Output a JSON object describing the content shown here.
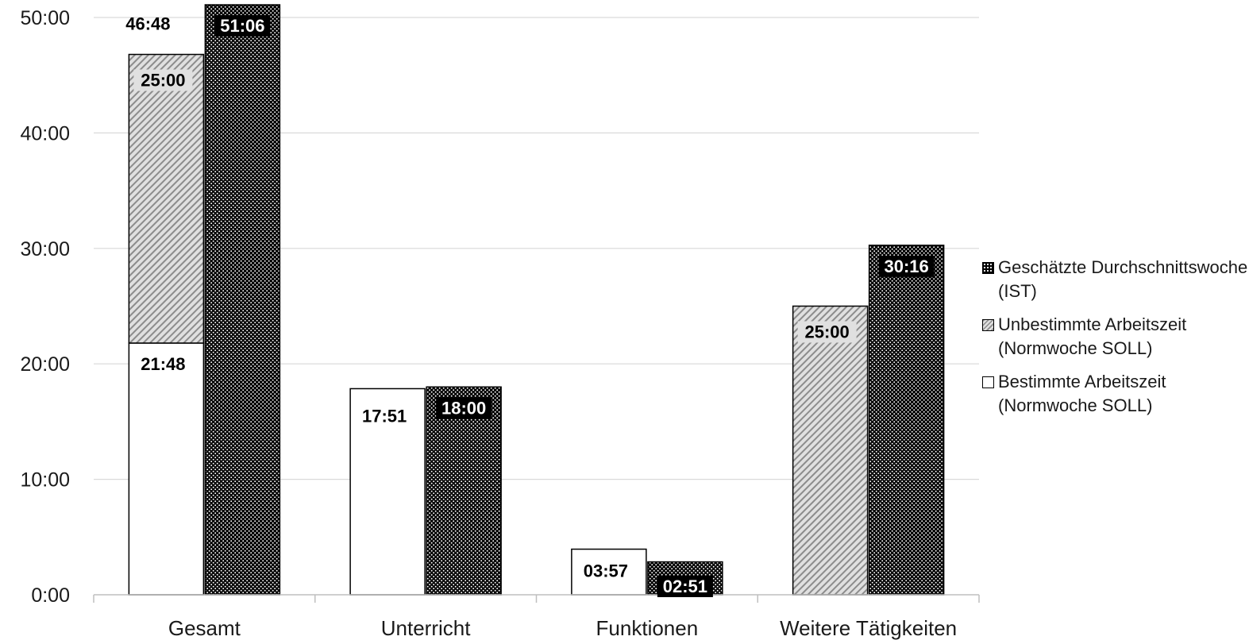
{
  "chart_data": {
    "type": "bar",
    "title": "",
    "xlabel": "",
    "ylabel": "",
    "categories": [
      "Gesamt",
      "Unterricht",
      "Funktionen",
      "Weitere Tätigkeiten"
    ],
    "yticks": [
      "0:00",
      "10:00",
      "20:00",
      "30:00",
      "40:00",
      "50:00"
    ],
    "ylim_hours": [
      0,
      50
    ],
    "grid": "horizontal",
    "legend_position": "right",
    "series": [
      {
        "name": "Bestimmte Arbeitszeit (Normwoche SOLL)",
        "group": "SOLL",
        "pattern": "white",
        "values_hours": [
          21.8,
          17.85,
          3.95,
          0
        ],
        "labels": [
          "21:48",
          "17:51",
          "03:57",
          ""
        ]
      },
      {
        "name": "Unbestimmte Arbeitszeit (Normwoche SOLL)",
        "group": "SOLL",
        "pattern": "diagonal-hatch",
        "values_hours": [
          25.0,
          0,
          0,
          25.0
        ],
        "labels": [
          "25:00",
          "",
          "",
          "25:00"
        ]
      },
      {
        "name": "Geschätzte Durchschnittswoche (IST)",
        "group": "IST",
        "pattern": "black-dots",
        "values_hours": [
          51.1,
          18.0,
          2.85,
          30.27
        ],
        "labels": [
          "51:06",
          "18:00",
          "02:51",
          "30:16"
        ]
      }
    ],
    "stack_totals": [
      {
        "category": "Gesamt",
        "group": "SOLL",
        "value_hours": 46.8,
        "label": "46:48"
      }
    ],
    "colors": {
      "ist_fill": "#000000",
      "ist_dots": "#ffffff",
      "unb_fill": "#e0e0e0",
      "unb_hatch": "#8c8c8c",
      "best_fill": "#ffffff",
      "axis": "#bfbfbf",
      "grid": "#d9d9d9"
    }
  },
  "legend": {
    "items": [
      {
        "label": "Geschätzte Durchschnittswoche (IST)",
        "swatch": "black-dots"
      },
      {
        "label": "Unbestimmte Arbeitszeit (Normwoche SOLL)",
        "swatch": "diagonal-hatch"
      },
      {
        "label": "Bestimmte Arbeitszeit (Normwoche SOLL)",
        "swatch": "white"
      }
    ]
  }
}
